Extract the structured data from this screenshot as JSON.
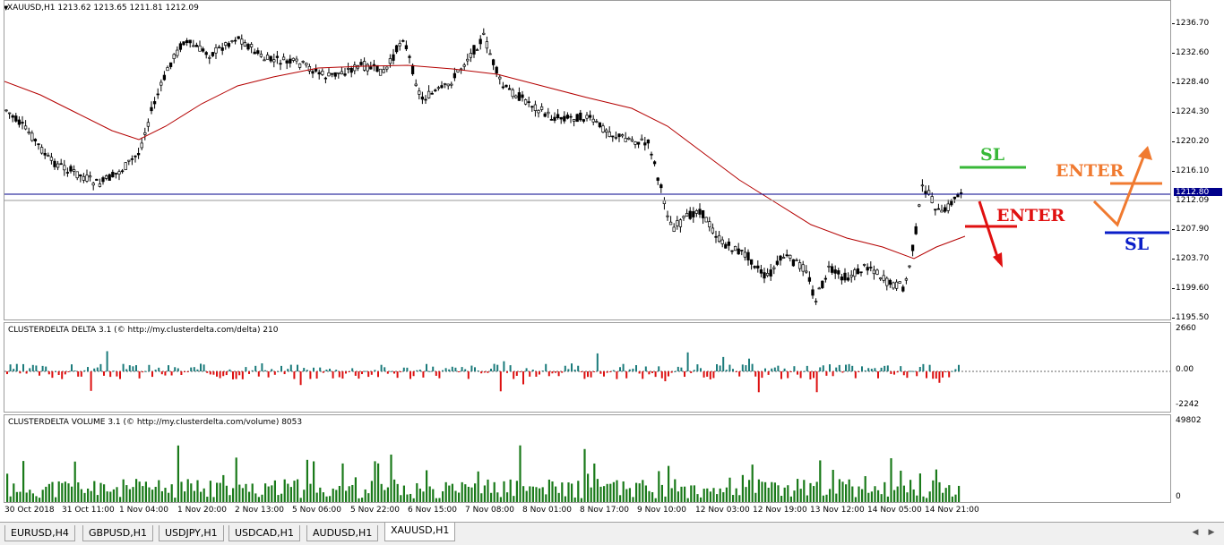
{
  "chart": {
    "header": "XAUUSD,H1  1213.62 1213.65 1211.81 1212.09",
    "price_axis": [
      "1236.70",
      "1232.60",
      "1228.40",
      "1224.30",
      "1220.20",
      "1216.10",
      "1207.90",
      "1203.70",
      "1199.60",
      "1195.50"
    ],
    "current_price": "1212.80",
    "second_price": "1212.09",
    "current_price_color": "#00008b",
    "ma_color": "#b40000",
    "bull_color": "#000000",
    "annotations": {
      "sl_top": "SL",
      "enter_red": "ENTER",
      "enter_orange": "ENTER",
      "sl_bottom": "SL",
      "green": "#38b838",
      "red": "#e01010",
      "orange": "#f07a30",
      "blue": "#0a1ec8"
    }
  },
  "delta": {
    "title": "CLUSTERDELTA DELTA 3.1 (© http://my.clusterdelta.com/delta) 210",
    "axis": [
      "2660",
      "0.00",
      "-2242"
    ],
    "pos_color": "#1b7b7b",
    "neg_color": "#dd1010"
  },
  "volume": {
    "title": "CLUSTERDELTA VOLUME 3.1 (© http://my.clusterdelta.com/volume) 8053",
    "axis": [
      "49802",
      "0"
    ],
    "bar_color": "#1a7a1a"
  },
  "time_axis": [
    "30 Oct 2018",
    "31 Oct 11:00",
    "1 Nov 04:00",
    "1 Nov 20:00",
    "2 Nov 13:00",
    "5 Nov 06:00",
    "5 Nov 22:00",
    "6 Nov 15:00",
    "7 Nov 08:00",
    "8 Nov 01:00",
    "8 Nov 17:00",
    "9 Nov 10:00",
    "12 Nov 03:00",
    "12 Nov 19:00",
    "13 Nov 12:00",
    "14 Nov 05:00",
    "14 Nov 21:00"
  ],
  "tabs": [
    "EURUSD,H4",
    "GBPUSD,H1",
    "USDJPY,H1",
    "USDCAD,H1",
    "AUDUSD,H1",
    "XAUUSD,H1"
  ],
  "active_tab": "XAUUSD,H1"
}
